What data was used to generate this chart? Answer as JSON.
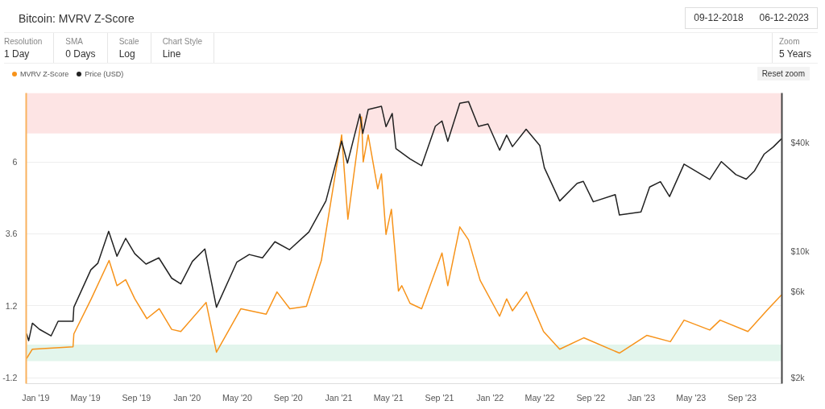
{
  "chart_data": {
    "type": "line",
    "title": "Bitcoin: MVRV Z-Score",
    "annotations": [
      "Resolution",
      "1 Day",
      "SMA",
      "0 Days",
      "Scale",
      "Log",
      "Chart Style",
      "Line",
      "09-12-2018",
      "06-12-2023",
      "Zoom",
      "5 Years",
      "Reset zoom"
    ],
    "series": [
      {
        "name": "MVRV Z-Score",
        "color": "#f7931a",
        "x": [
          "2018-12-10",
          "2018-12-24",
          "2019-04-01",
          "2019-04-03",
          "2019-05-15",
          "2019-06-27",
          "2019-07-16",
          "2019-08-06",
          "2019-08-28",
          "2019-09-26",
          "2019-10-26",
          "2019-11-25",
          "2019-12-17",
          "2020-02-16",
          "2020-03-12",
          "2020-05-10",
          "2020-07-10",
          "2020-08-05",
          "2020-09-05",
          "2020-10-15",
          "2020-11-20",
          "2021-01-08",
          "2021-01-23",
          "2021-02-25",
          "2021-03-01",
          "2021-03-13",
          "2021-04-05",
          "2021-04-14",
          "2021-04-25",
          "2021-05-08",
          "2021-05-25",
          "2021-06-02",
          "2021-06-22",
          "2021-07-20",
          "2021-09-07",
          "2021-09-21",
          "2021-10-20",
          "2021-11-10",
          "2021-12-08",
          "2022-01-24",
          "2022-02-10",
          "2022-02-24",
          "2022-03-30",
          "2022-05-10",
          "2022-06-18",
          "2022-08-15",
          "2022-11-09",
          "2023-01-14",
          "2023-03-12",
          "2023-04-14",
          "2023-06-15",
          "2023-07-10",
          "2023-09-15",
          "2023-10-30",
          "2023-12-05"
        ],
        "values": [
          -0.56,
          -0.25,
          -0.17,
          0.26,
          1.43,
          2.71,
          1.87,
          2.07,
          1.43,
          0.77,
          1.1,
          0.41,
          0.34,
          1.31,
          -0.35,
          1.1,
          0.92,
          1.66,
          1.1,
          1.18,
          2.71,
          6.9,
          4.09,
          7.5,
          6.0,
          6.9,
          5.1,
          5.6,
          3.58,
          4.42,
          1.69,
          1.87,
          1.28,
          1.1,
          2.96,
          1.87,
          3.83,
          3.4,
          2.05,
          0.85,
          1.43,
          1.03,
          1.66,
          0.34,
          -0.25,
          0.13,
          -0.38,
          0.21,
          0.0,
          0.72,
          0.39,
          0.72,
          0.34,
          1.03,
          1.56
        ]
      },
      {
        "name": "Price (USD)",
        "color": "#222222",
        "axis": "y2",
        "x": [
          "2018-12-10",
          "2018-12-15",
          "2018-12-24",
          "2019-01-10",
          "2019-02-07",
          "2019-02-24",
          "2019-04-01",
          "2019-04-03",
          "2019-05-14",
          "2019-05-31",
          "2019-06-26",
          "2019-07-16",
          "2019-08-06",
          "2019-08-28",
          "2019-09-24",
          "2019-10-25",
          "2019-11-25",
          "2019-12-17",
          "2020-01-14",
          "2020-02-13",
          "2020-03-12",
          "2020-04-30",
          "2020-05-30",
          "2020-07-01",
          "2020-07-31",
          "2020-09-04",
          "2020-10-21",
          "2020-12-01",
          "2021-01-08",
          "2021-01-22",
          "2021-02-21",
          "2021-02-28",
          "2021-03-13",
          "2021-04-14",
          "2021-04-25",
          "2021-05-10",
          "2021-05-19",
          "2021-06-22",
          "2021-07-20",
          "2021-08-22",
          "2021-09-07",
          "2021-09-21",
          "2021-10-20",
          "2021-11-10",
          "2021-12-04",
          "2021-12-27",
          "2022-01-24",
          "2022-02-10",
          "2022-02-24",
          "2022-03-29",
          "2022-05-01",
          "2022-05-12",
          "2022-06-18",
          "2022-07-30",
          "2022-08-14",
          "2022-09-07",
          "2022-10-30",
          "2022-11-09",
          "2022-12-31",
          "2023-01-21",
          "2023-02-16",
          "2023-03-10",
          "2023-04-14",
          "2023-06-15",
          "2023-07-13",
          "2023-08-17",
          "2023-09-11",
          "2023-10-01",
          "2023-10-24",
          "2023-11-15",
          "2023-12-05"
        ],
        "values": [
          3500,
          3200,
          4000,
          3700,
          3400,
          4100,
          4100,
          4900,
          7900,
          8600,
          12900,
          9400,
          11800,
          9700,
          8500,
          9200,
          7100,
          6600,
          8800,
          10300,
          4900,
          8700,
          9600,
          9200,
          11300,
          10200,
          12800,
          19000,
          40800,
          30800,
          57500,
          45000,
          61000,
          63500,
          49000,
          58000,
          37000,
          32500,
          29800,
          49300,
          52700,
          40700,
          66000,
          67500,
          49200,
          50700,
          36300,
          44000,
          38000,
          47400,
          38500,
          29000,
          19000,
          23800,
          24400,
          18800,
          20600,
          15900,
          16500,
          22700,
          24300,
          20100,
          30400,
          25000,
          31400,
          26600,
          25100,
          27900,
          34500,
          37800,
          42000
        ]
      }
    ],
    "xlim": [
      "2018-12-09",
      "2023-12-06"
    ],
    "xticks": [
      {
        "value": "2019-01-01",
        "label": "Jan '19"
      },
      {
        "value": "2019-05-01",
        "label": "May '19"
      },
      {
        "value": "2019-09-01",
        "label": "Sep '19"
      },
      {
        "value": "2020-01-01",
        "label": "Jan '20"
      },
      {
        "value": "2020-05-01",
        "label": "May '20"
      },
      {
        "value": "2020-09-01",
        "label": "Sep '20"
      },
      {
        "value": "2021-01-01",
        "label": "Jan '21"
      },
      {
        "value": "2021-05-01",
        "label": "May '21"
      },
      {
        "value": "2021-09-01",
        "label": "Sep '21"
      },
      {
        "value": "2022-01-01",
        "label": "Jan '22"
      },
      {
        "value": "2022-05-01",
        "label": "May '22"
      },
      {
        "value": "2022-09-01",
        "label": "Sep '22"
      },
      {
        "value": "2023-01-01",
        "label": "Jan '23"
      },
      {
        "value": "2023-05-01",
        "label": "May '23"
      },
      {
        "value": "2023-09-01",
        "label": "Sep '23"
      }
    ],
    "ylim": [
      -1.4,
      8.3
    ],
    "yticks": [
      -1.2,
      1.2,
      3.6,
      6
    ],
    "y2lim": [
      1850,
      75300
    ],
    "y2ticks": [
      {
        "value": 2000,
        "label": "$2k"
      },
      {
        "value": 6000,
        "label": "$6k"
      },
      {
        "value": 10000,
        "label": "$10k"
      },
      {
        "value": 40000,
        "label": "$40k"
      }
    ],
    "log": "y2",
    "bands": [
      {
        "axis": "y",
        "from": 6.95,
        "to": 8.3,
        "color": "#fde4e4"
      },
      {
        "axis": "y",
        "from": -0.65,
        "to": -0.1,
        "color": "#e2f5ec"
      }
    ],
    "grid": "y",
    "legend": "top left",
    "line_style": "solid"
  }
}
